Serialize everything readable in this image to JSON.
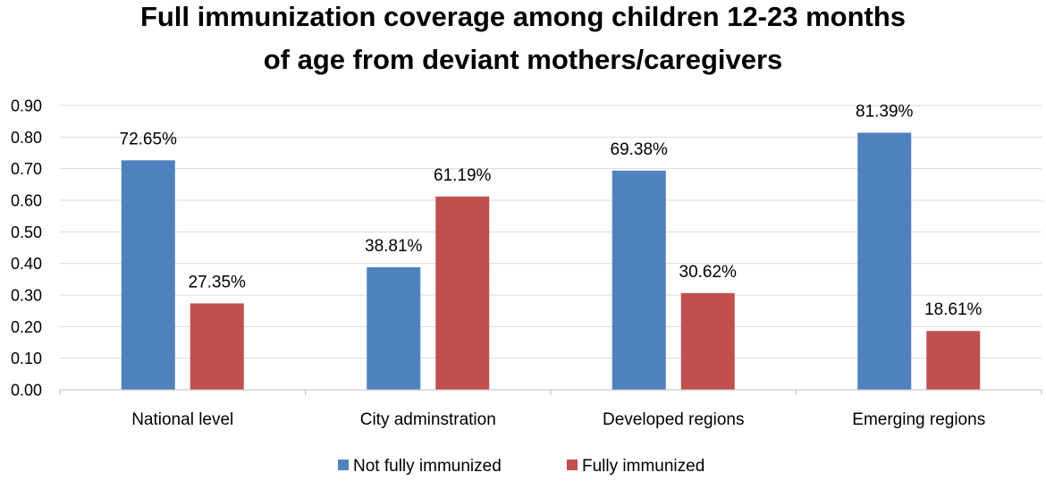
{
  "chart_data": {
    "type": "bar",
    "title_lines": [
      "Full immunization coverage among children 12-23 months",
      "of age from deviant mothers/caregivers"
    ],
    "categories": [
      "National level",
      "City adminstration",
      "Developed regions",
      "Emerging regions"
    ],
    "series": [
      {
        "name": "Not fully immunized",
        "color": "#4f81bd",
        "values": [
          0.7265,
          0.3881,
          0.6938,
          0.8139
        ],
        "labels": [
          "72.65%",
          "38.81%",
          "69.38%",
          "81.39%"
        ]
      },
      {
        "name": "Fully immunized",
        "color": "#c0504d",
        "values": [
          0.2735,
          0.6119,
          0.3062,
          0.1861
        ],
        "labels": [
          "27.35%",
          "61.19%",
          "30.62%",
          "18.61%"
        ]
      }
    ],
    "ylim": [
      0,
      0.9
    ],
    "yticks": [
      "0.00",
      "0.10",
      "0.20",
      "0.30",
      "0.40",
      "0.50",
      "0.60",
      "0.70",
      "0.80",
      "0.90"
    ],
    "xlabel": "",
    "ylabel": "",
    "grid": true,
    "legend_position": "bottom"
  }
}
